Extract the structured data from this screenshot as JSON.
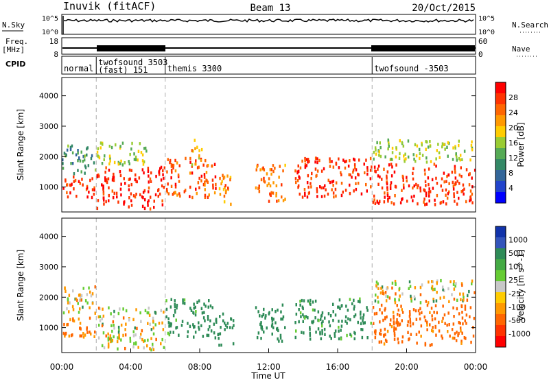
{
  "header": {
    "station": "Inuvik (fitACF)",
    "beam": "Beam 13",
    "date": "20/Oct/2015"
  },
  "summary_panel": {
    "nsky_label": "N.Sky",
    "nsky_ticks": [
      "10^5",
      "10^0"
    ],
    "nsearch_label": "N.Search",
    "nsearch_ticks": [
      "10^5",
      "10^0"
    ],
    "freq_label": "Freq.",
    "freq_unit": "[MHz]",
    "freq_ticks": [
      "18",
      "8"
    ],
    "nave_label": "Nave",
    "nave_ticks": [
      "60",
      "0"
    ],
    "cpid_label": "CPID"
  },
  "cpid_segments": [
    {
      "start": 0,
      "name": "normal"
    },
    {
      "start": 2,
      "name": "twofsound 3503",
      "sub": "(fast) 151"
    },
    {
      "start": 6,
      "name": "themis 3300"
    },
    {
      "start": 18,
      "name": "twofsound -3503"
    }
  ],
  "chart_data": [
    {
      "type": "heatmap",
      "title": "Power",
      "xlabel": "",
      "ylabel": "Slant Range [km]",
      "xlim": [
        0,
        24
      ],
      "ylim": [
        180,
        4600
      ],
      "yticks": [
        "1000",
        "2000",
        "3000",
        "4000"
      ],
      "colorbar": {
        "label": "Power [dB]",
        "ticks": [
          "28",
          "24",
          "20",
          "16",
          "12",
          "8",
          "4"
        ],
        "colors": [
          "#ff0000",
          "#ff3300",
          "#ff6600",
          "#ff9900",
          "#ffcc00",
          "#99cc33",
          "#55aa55",
          "#338866",
          "#336699",
          "#2244cc",
          "#0000ff"
        ]
      },
      "echo_regions": [
        {
          "hours": [
            0.0,
            2.0
          ],
          "range_km": [
            600,
            1400
          ],
          "power_db": 26
        },
        {
          "hours": [
            0.0,
            2.0
          ],
          "range_km": [
            1400,
            2400
          ],
          "power_db": 10
        },
        {
          "hours": [
            2.0,
            6.0
          ],
          "range_km": [
            250,
            1700
          ],
          "power_db": 27
        },
        {
          "hours": [
            2.0,
            5.0
          ],
          "range_km": [
            1700,
            2500
          ],
          "power_db": 14
        },
        {
          "hours": [
            6.0,
            9.0
          ],
          "range_km": [
            600,
            2000
          ],
          "power_db": 24
        },
        {
          "hours": [
            7.5,
            8.2
          ],
          "range_km": [
            1700,
            2600
          ],
          "power_db": 18
        },
        {
          "hours": [
            9.0,
            10.0
          ],
          "range_km": [
            400,
            1500
          ],
          "power_db": 20
        },
        {
          "hours": [
            11.2,
            13.0
          ],
          "range_km": [
            500,
            1800
          ],
          "power_db": 22
        },
        {
          "hours": [
            13.5,
            18.0
          ],
          "range_km": [
            600,
            2000
          ],
          "power_db": 25
        },
        {
          "hours": [
            18.0,
            24.0
          ],
          "range_km": [
            400,
            1800
          ],
          "power_db": 26
        },
        {
          "hours": [
            18.0,
            24.0
          ],
          "range_km": [
            1800,
            2600
          ],
          "power_db": 14
        }
      ]
    },
    {
      "type": "heatmap",
      "title": "Velocity",
      "xlabel": "Time UT",
      "ylabel": "Slant Range [km]",
      "xlim": [
        0,
        24
      ],
      "ylim": [
        180,
        4600
      ],
      "xticks": [
        "00:00",
        "04:00",
        "08:00",
        "12:00",
        "16:00",
        "20:00",
        "00:00"
      ],
      "yticks": [
        "1000",
        "2000",
        "3000",
        "4000"
      ],
      "colorbar": {
        "label": "Velocity [m s^-1]",
        "ticks": [
          "1000",
          "500",
          "100",
          "25",
          "-25",
          "-100",
          "-500",
          "-1000"
        ],
        "colors": [
          "#1133aa",
          "#3355bb",
          "#2e8b57",
          "#44aa44",
          "#66cc33",
          "#c8c8c8",
          "#ffcc00",
          "#ff9900",
          "#ff6600",
          "#ff3300",
          "#ff0000"
        ]
      },
      "echo_regions": [
        {
          "hours": [
            0.0,
            2.0
          ],
          "range_km": [
            600,
            1400
          ],
          "velocity": -150
        },
        {
          "hours": [
            0.0,
            2.0
          ],
          "range_km": [
            1400,
            2400
          ],
          "velocity": 0
        },
        {
          "hours": [
            2.0,
            6.0
          ],
          "range_km": [
            250,
            1700
          ],
          "velocity": 0
        },
        {
          "hours": [
            6.0,
            9.0
          ],
          "range_km": [
            600,
            2000
          ],
          "velocity": 200
        },
        {
          "hours": [
            9.0,
            10.0
          ],
          "range_km": [
            400,
            1500
          ],
          "velocity": 200
        },
        {
          "hours": [
            11.2,
            13.0
          ],
          "range_km": [
            500,
            1800
          ],
          "velocity": 250
        },
        {
          "hours": [
            13.5,
            18.0
          ],
          "range_km": [
            600,
            2000
          ],
          "velocity": 200
        },
        {
          "hours": [
            18.0,
            24.0
          ],
          "range_km": [
            400,
            1800
          ],
          "velocity": -200
        },
        {
          "hours": [
            18.0,
            24.0
          ],
          "range_km": [
            1800,
            2600
          ],
          "velocity": 0
        }
      ]
    }
  ]
}
